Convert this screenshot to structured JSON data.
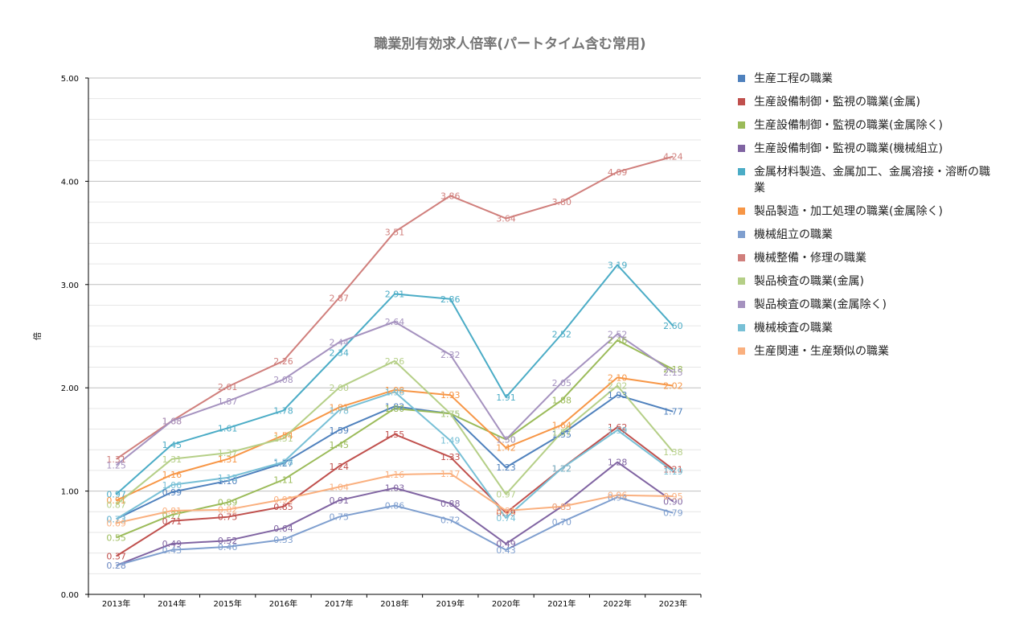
{
  "chart_data": {
    "type": "line",
    "title": "職業別有効求人倍率(パートタイム含む常用)",
    "ylabel": "倍",
    "xlabel": "",
    "ylim": [
      0,
      5
    ],
    "yticks": [
      "0.00",
      "1.00",
      "2.00",
      "3.00",
      "4.00",
      "5.00"
    ],
    "grid": true,
    "legend_position": "right",
    "categories": [
      "2013年",
      "2014年",
      "2015年",
      "2016年",
      "2017年",
      "2018年",
      "2019年",
      "2020年",
      "2021年",
      "2022年",
      "2023年"
    ],
    "series": [
      {
        "name": "生産工程の職業",
        "color": "#4f81bd",
        "values": [
          0.73,
          0.99,
          1.1,
          1.27,
          1.59,
          1.82,
          1.75,
          1.23,
          1.55,
          1.93,
          1.77
        ]
      },
      {
        "name": "生産設備制御・監視の職業(金属)",
        "color": "#c0504d",
        "values": [
          0.37,
          0.71,
          0.75,
          0.85,
          1.24,
          1.55,
          1.33,
          0.79,
          1.22,
          1.62,
          1.21
        ]
      },
      {
        "name": "生産設備制御・監視の職業(金属除く)",
        "color": "#9bbb59",
        "values": [
          0.55,
          0.77,
          0.89,
          1.11,
          1.45,
          1.8,
          1.75,
          1.5,
          1.88,
          2.46,
          2.18
        ]
      },
      {
        "name": "生産設備制御・監視の職業(機械組立)",
        "color": "#8064a2",
        "values": [
          0.28,
          0.49,
          0.52,
          0.64,
          0.91,
          1.03,
          0.88,
          0.49,
          0.85,
          1.28,
          0.9
        ]
      },
      {
        "name": "金属材料製造、金属加工、金属溶接・溶断の職業",
        "color": "#4bacc6",
        "values": [
          0.97,
          1.45,
          1.61,
          1.78,
          2.34,
          2.91,
          2.86,
          1.91,
          2.52,
          3.19,
          2.6
        ]
      },
      {
        "name": "製品製造・加工処理の職業(金属除く)",
        "color": "#f79646",
        "values": [
          0.91,
          1.16,
          1.31,
          1.54,
          1.81,
          1.98,
          1.93,
          1.42,
          1.64,
          2.1,
          2.02
        ]
      },
      {
        "name": "機械組立の職業",
        "color": "#7f9fcf",
        "values": [
          0.28,
          0.43,
          0.46,
          0.53,
          0.75,
          0.86,
          0.72,
          0.43,
          0.7,
          0.94,
          0.79
        ]
      },
      {
        "name": "機械整備・修理の職業",
        "color": "#d07f7c",
        "values": [
          1.31,
          1.68,
          2.01,
          2.26,
          2.87,
          3.51,
          3.86,
          3.64,
          3.8,
          4.09,
          4.24
        ]
      },
      {
        "name": "製品検査の職業(金属)",
        "color": "#b5cf87",
        "values": [
          0.87,
          1.31,
          1.37,
          1.51,
          2.0,
          2.26,
          1.75,
          0.97,
          1.57,
          2.02,
          1.38
        ]
      },
      {
        "name": "製品検査の職業(金属除く)",
        "color": "#a592bf",
        "values": [
          1.25,
          1.68,
          1.87,
          2.08,
          2.44,
          2.64,
          2.32,
          1.5,
          2.05,
          2.52,
          2.15
        ]
      },
      {
        "name": "機械検査の職業",
        "color": "#78c0d6",
        "values": [
          0.73,
          1.06,
          1.13,
          1.28,
          1.78,
          1.96,
          1.49,
          0.74,
          1.22,
          1.59,
          1.19
        ]
      },
      {
        "name": "生産関連・生産類似の職業",
        "color": "#fab07f",
        "values": [
          0.69,
          0.81,
          0.82,
          0.92,
          1.04,
          1.16,
          1.17,
          0.81,
          0.85,
          0.96,
          0.95
        ]
      }
    ]
  }
}
